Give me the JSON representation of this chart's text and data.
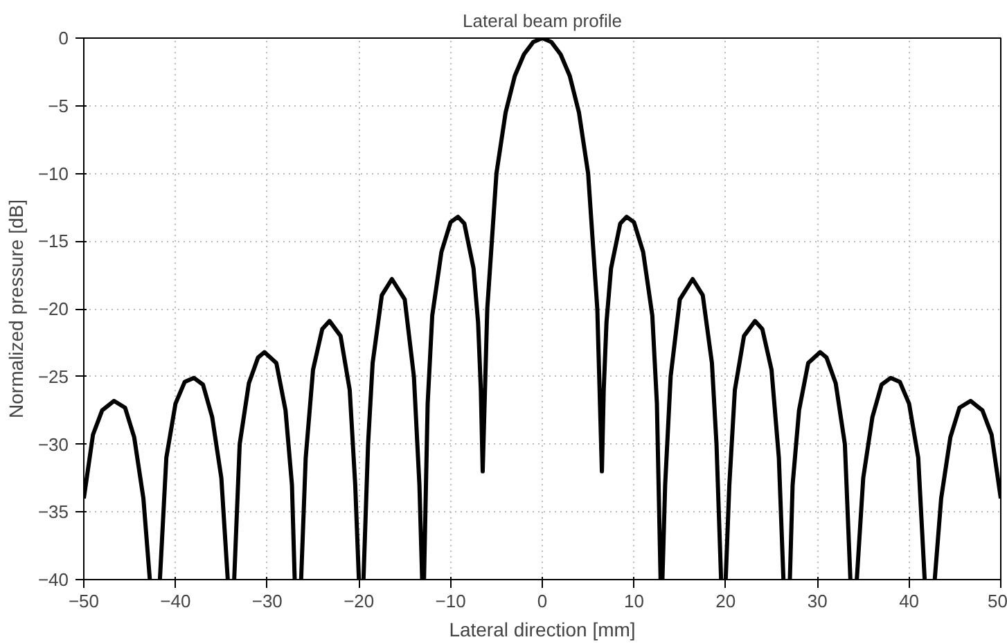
{
  "chart_data": {
    "type": "line",
    "title": "Lateral beam profile",
    "xlabel": "Lateral direction [mm]",
    "ylabel": "Normalized pressure [dB]",
    "xlim": [
      -50,
      50
    ],
    "ylim": [
      -40,
      0
    ],
    "xticks": [
      -50,
      -40,
      -30,
      -20,
      -10,
      0,
      10,
      20,
      30,
      40,
      50
    ],
    "yticks": [
      -40,
      -35,
      -30,
      -25,
      -20,
      -15,
      -10,
      -5,
      0
    ],
    "grid": true,
    "line_style": "solid",
    "series": [
      {
        "color": "#000000",
        "x": [
          -50,
          -49,
          -48,
          -46.7,
          -45.5,
          -44.5,
          -43.5,
          -42.8,
          -42.25,
          -41.7,
          -41,
          -40,
          -39,
          -38,
          -37,
          -36,
          -35,
          -34.3,
          -33.95,
          -33.6,
          -33,
          -32,
          -31,
          -30.3,
          -29,
          -28,
          -27.3,
          -27,
          -26.65,
          -26.3,
          -25.8,
          -25,
          -24,
          -23.2,
          -22,
          -21,
          -20.4,
          -20,
          -19.75,
          -19.5,
          -19,
          -18.5,
          -17.5,
          -16.4,
          -15,
          -14,
          -13.4,
          -13.1,
          -13,
          -12.9,
          -12.5,
          -12,
          -11,
          -10,
          -9.2,
          -8.5,
          -7.5,
          -7,
          -6.7,
          -6.5,
          -6,
          -5,
          -4,
          -3,
          -2,
          -1,
          0,
          1,
          2,
          3,
          4,
          5,
          6,
          6.5,
          6.7,
          7,
          7.5,
          8.5,
          9.2,
          10,
          11,
          12,
          12.5,
          12.9,
          13,
          13.1,
          13.4,
          14,
          15,
          16.4,
          17.5,
          18.5,
          19,
          19.5,
          19.75,
          20,
          20.4,
          21,
          22,
          23.2,
          24,
          25,
          25.8,
          26.3,
          26.65,
          27,
          27.3,
          28,
          29,
          30.3,
          31,
          32,
          33,
          33.6,
          33.95,
          34.3,
          35,
          36,
          37,
          38,
          39,
          40,
          41,
          41.7,
          42.25,
          42.8,
          43.5,
          44.5,
          45.5,
          46.7,
          48,
          49,
          50
        ],
        "values": [
          -34,
          -29.3,
          -27.5,
          -26.8,
          -27.3,
          -29.5,
          -34,
          -40,
          null,
          -40,
          -31,
          -27,
          -25.4,
          -25.1,
          -25.6,
          -28,
          -32.5,
          -40,
          null,
          -40,
          -30,
          -25.5,
          -23.6,
          -23.2,
          -24,
          -27.5,
          -33,
          -40,
          null,
          -40,
          -31,
          -24.5,
          -21.5,
          -20.9,
          -22,
          -26,
          -33,
          -40,
          null,
          -40,
          -30,
          -24,
          -19,
          -17.8,
          -19.3,
          -25,
          -33,
          -40,
          null,
          -40,
          -27,
          -20.5,
          -15.8,
          -13.6,
          -13.2,
          -13.7,
          -17,
          -21,
          -26,
          -32,
          -20,
          -10,
          -5.5,
          -2.8,
          -1.2,
          -0.3,
          0,
          -0.3,
          -1.2,
          -2.8,
          -5.5,
          -10,
          -20,
          -32,
          -26,
          -21,
          -17,
          -13.7,
          -13.2,
          -13.6,
          -15.8,
          -20.5,
          -27,
          -40,
          null,
          -40,
          -33,
          -25,
          -19.3,
          -17.8,
          -19,
          -24,
          -30,
          -40,
          null,
          -40,
          -33,
          -26,
          -22,
          -20.9,
          -21.5,
          -24.5,
          -31,
          -40,
          null,
          -40,
          -33,
          -27.5,
          -24,
          -23.2,
          -23.6,
          -25.5,
          -30,
          -40,
          null,
          -40,
          -32.5,
          -28,
          -25.6,
          -25.1,
          -25.4,
          -27,
          -31,
          -40,
          null,
          -40,
          -34,
          -29.5,
          -27.3,
          -26.8,
          -27.5,
          -29.3,
          -34
        ]
      }
    ]
  }
}
